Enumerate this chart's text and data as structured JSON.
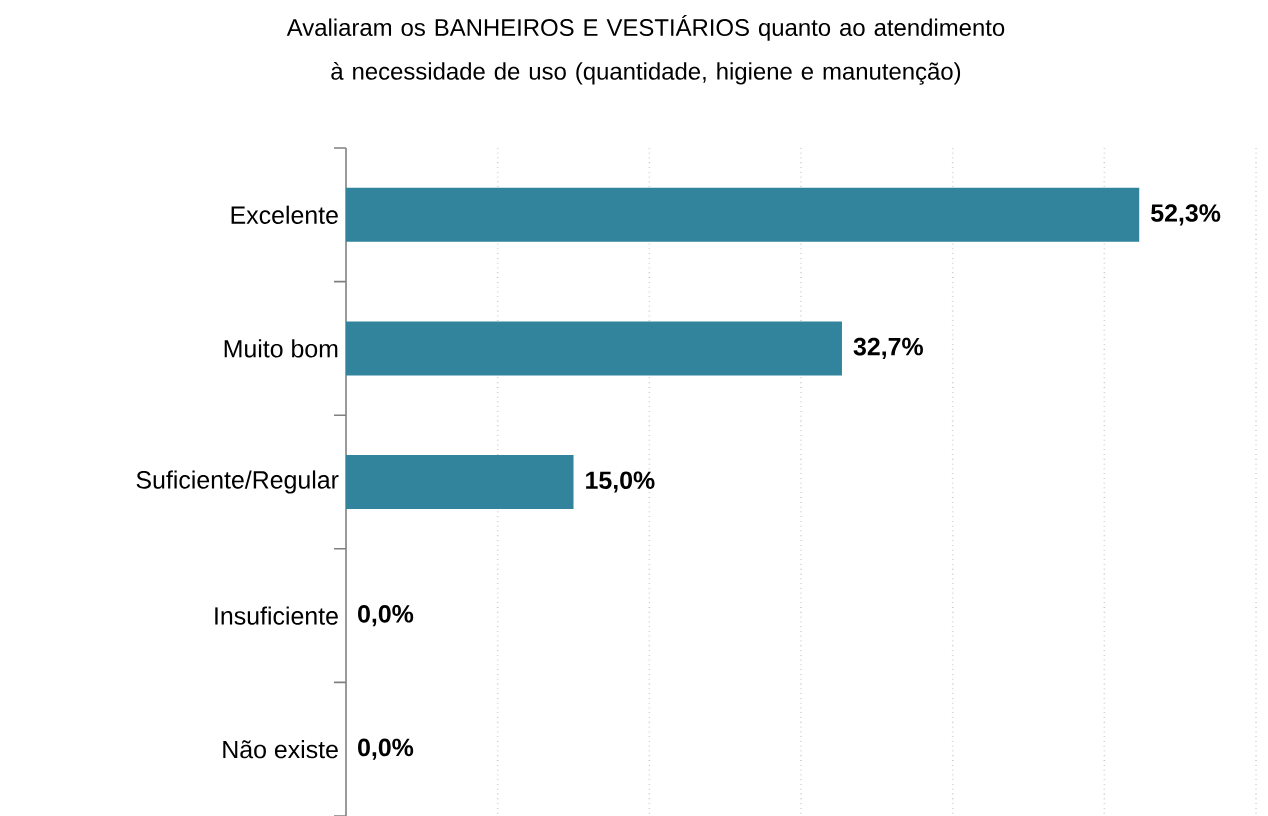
{
  "chart_data": {
    "type": "bar",
    "orientation": "horizontal",
    "title": "Avaliaram os BANHEIROS E VESTIÁRIOS quanto ao atendimento à necessidade de uso (quantidade, higiene e manutenção)",
    "categories": [
      "Excelente",
      "Muito bom",
      "Suficiente/Regular",
      "Insuficiente",
      "Não existe"
    ],
    "values": [
      52.3,
      32.7,
      15.0,
      0,
      0
    ],
    "value_labels": [
      "52,3%",
      "32,7%",
      "15,0%",
      "0,0%",
      "0,0%"
    ],
    "color": "#31849b",
    "xlim": [
      0,
      60
    ],
    "xticks": [
      {
        "value": 10,
        "label": null
      },
      {
        "value": 20,
        "label": null
      },
      {
        "value": 30,
        "label": null
      },
      {
        "value": 40,
        "label": null
      },
      {
        "value": 50,
        "label": null
      },
      {
        "value": 60,
        "label": null
      }
    ],
    "grid": "x",
    "tick_labels": "y"
  }
}
